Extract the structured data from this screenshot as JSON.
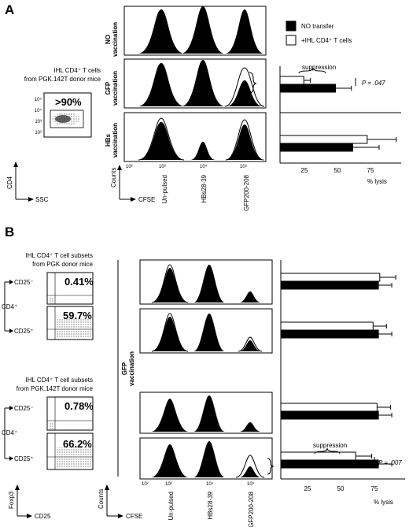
{
  "panelA": {
    "letter": "A",
    "donor_label_l1": "IHL CD4⁺ T cells",
    "donor_label_l2": "from PGK.142T  donor mice",
    "gate_pct": ">90%",
    "dot_ylabel": "CD4",
    "dot_xlabel": "SSC",
    "row_labels": [
      [
        "NO",
        "vaccination"
      ],
      [
        "GFP",
        "vaccination"
      ],
      [
        "HBs",
        "vaccination"
      ]
    ],
    "hist_ylabel": "Counts",
    "hist_xlabel": "CFSE",
    "peak_labels": [
      "Un-pulsed",
      "HBs28-39",
      "GFP200-208"
    ],
    "legend": [
      "NO transfer",
      "+IHL CD4⁺ T cells"
    ],
    "suppression": "suppression",
    "pvalue": "P = .047",
    "xlabel": "% lysis",
    "ticks": [
      "25",
      "50",
      "75"
    ]
  },
  "panelB": {
    "letter": "B",
    "group1_l1": "IHL CD4⁺ T cell subsets",
    "group1_l2": "from PGK donor mice",
    "group2_l1": "IHL CD4⁺ T cell subsets",
    "group2_l2": "from PGK.142T donor mice",
    "cd25neg": "CD25⁻",
    "cd25pos": "CD25⁺",
    "cd4": "CD4⁺",
    "pcts": [
      "0.41%",
      "59.7%",
      "0.78%",
      "66.2%"
    ],
    "dot_ylabel": "Foxp3",
    "dot_xlabel": "CD25",
    "vacc_label": [
      "GFP",
      "vaccination"
    ],
    "hist_ylabel": "Counts",
    "hist_xlabel": "CFSE",
    "peak_labels": [
      "Un-pulsed",
      "HBs28-39",
      "GFP200-208"
    ],
    "suppression": "suppression",
    "pvalue": "P = .007",
    "xlabel": "% lysis",
    "ticks": [
      "25",
      "50",
      "75"
    ]
  },
  "chart_data": [
    {
      "type": "bar",
      "title": "",
      "categories": [
        "GFP vaccination",
        "HBs vaccination"
      ],
      "series": [
        {
          "name": "NO transfer",
          "values": [
            42,
            55
          ],
          "errors": [
            12,
            20
          ]
        },
        {
          "name": "+IHL CD4⁺ T cells",
          "values": [
            18,
            66
          ],
          "errors": [
            5,
            22
          ]
        }
      ],
      "xlabel": "% lysis",
      "xlim": [
        0,
        90
      ],
      "ticks": [
        25,
        50,
        75
      ],
      "legend": "top-right",
      "colors": {
        "NO transfer": "#000000",
        "+IHL CD4⁺ T cells": "#ffffff"
      }
    },
    {
      "type": "bar",
      "title": "",
      "categories": [
        "PGK CD25-",
        "PGK CD25+",
        "PGK.142T CD25-",
        "PGK.142T CD25+"
      ],
      "series": [
        {
          "name": "NO transfer",
          "values": [
            73,
            73,
            73,
            73
          ],
          "errors": [
            10,
            10,
            10,
            10
          ]
        },
        {
          "name": "+IHL CD4⁺ T cells",
          "values": [
            74,
            69,
            72,
            56
          ],
          "errors": [
            12,
            10,
            10,
            12
          ]
        }
      ],
      "xlabel": "% lysis",
      "xlim": [
        0,
        90
      ],
      "ticks": [
        25,
        50,
        75
      ]
    }
  ]
}
